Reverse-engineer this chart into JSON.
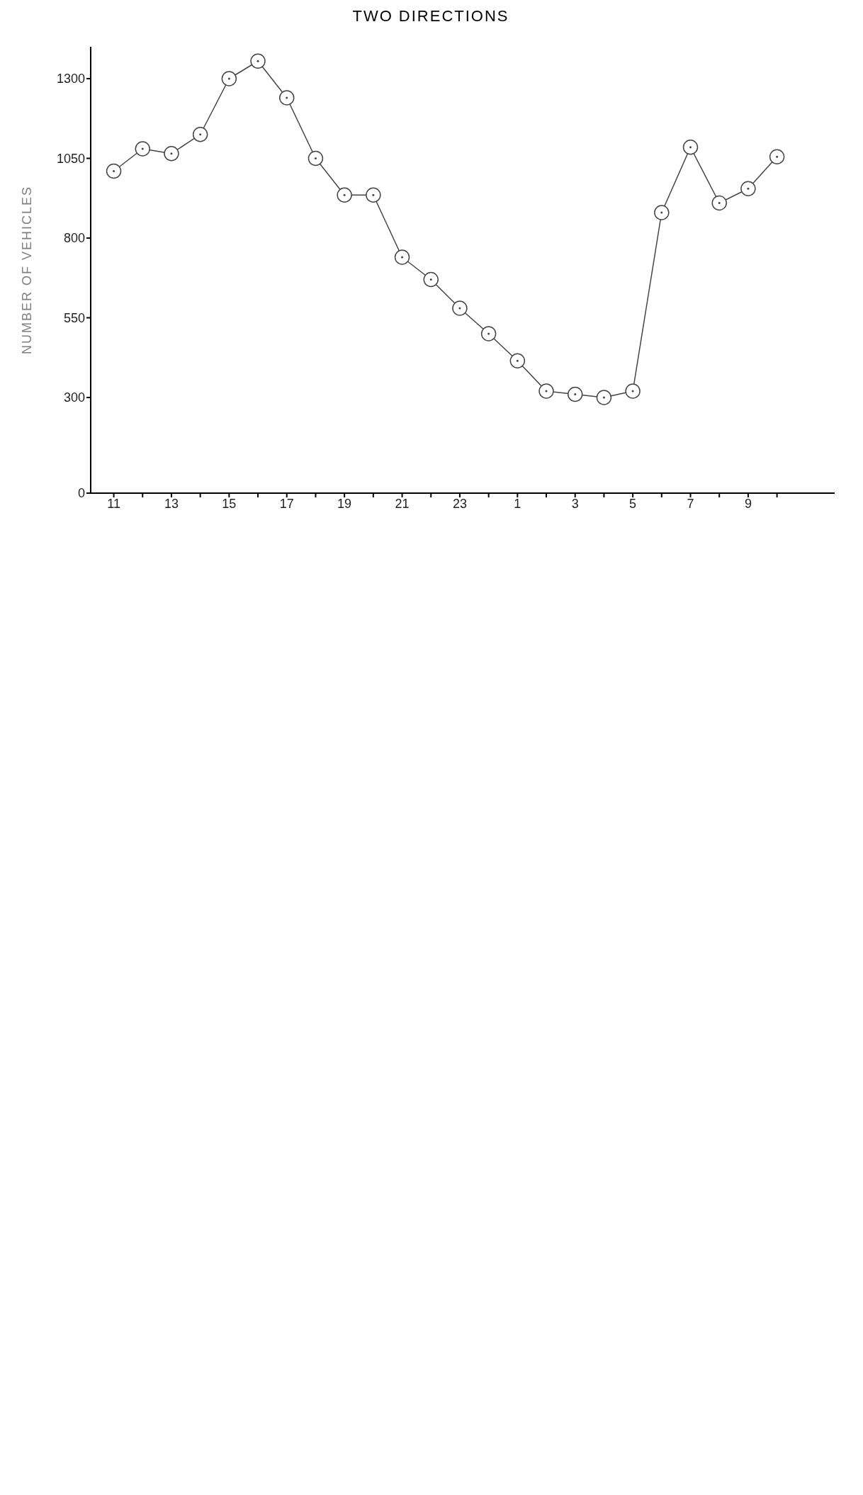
{
  "chart_data": {
    "type": "line",
    "title": "TWO DIRECTIONS",
    "ylabel": "NUMBER OF VEHICLES",
    "categories": [
      "11",
      null,
      "13",
      null,
      "15",
      null,
      "17",
      null,
      "19",
      null,
      "21",
      null,
      "23",
      null,
      "1",
      null,
      "3",
      null,
      "5",
      null,
      "7",
      null,
      "9",
      null
    ],
    "series": [
      {
        "color": "#444444",
        "values": [
          1010,
          1080,
          1065,
          1125,
          1300,
          1355,
          1240,
          1050,
          935,
          935,
          740,
          670,
          580,
          500,
          415,
          320,
          310,
          300,
          320,
          880,
          1085,
          910,
          955,
          1055
        ]
      }
    ],
    "ylim": [
      0,
      1400
    ],
    "yticks": [
      0,
      300,
      550,
      800,
      1050,
      1300
    ],
    "grid": false,
    "marker": "circle",
    "line_style": "solid"
  }
}
